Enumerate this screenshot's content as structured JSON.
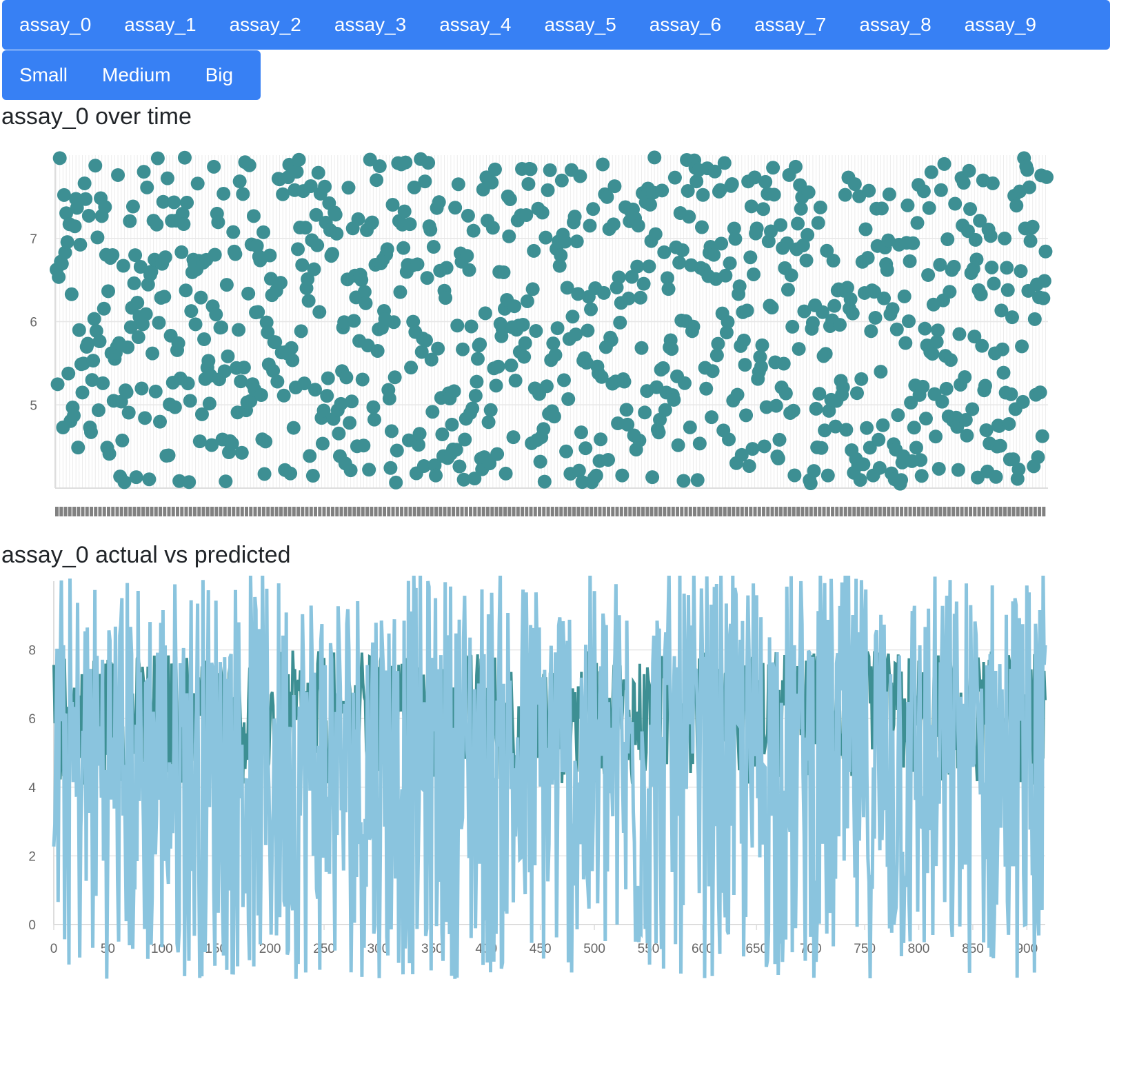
{
  "assay_tabs": [
    "assay_0",
    "assay_1",
    "assay_2",
    "assay_3",
    "assay_4",
    "assay_5",
    "assay_6",
    "assay_7",
    "assay_8",
    "assay_9"
  ],
  "size_tabs": [
    "Small",
    "Medium",
    "Big"
  ],
  "scatter_chart": {
    "title": "assay_0 over time"
  },
  "line_chart": {
    "title": "assay_0 actual vs predicted"
  },
  "colors": {
    "tab_bg": "#3780f4",
    "scatter_point": "#3d8f93",
    "actual_line": "#3d8f93",
    "predicted_line": "#8ac4de",
    "grid": "#e6e6e6"
  },
  "chart_data": [
    {
      "type": "scatter",
      "title": "assay_0 over time",
      "x_count": 920,
      "ylim": [
        4,
        8
      ],
      "yticks": [
        5,
        6,
        7
      ],
      "grid": true,
      "series": [
        {
          "values_range": [
            4.05,
            7.98
          ],
          "point_count": 920
        }
      ]
    },
    {
      "type": "line",
      "title": "assay_0 actual vs predicted",
      "xlim": [
        0,
        917
      ],
      "xticks": [
        0,
        50,
        100,
        150,
        200,
        250,
        300,
        350,
        400,
        450,
        500,
        550,
        600,
        650,
        700,
        750,
        800,
        850,
        900
      ],
      "ylim": [
        0,
        10
      ],
      "yticks": [
        0,
        2,
        4,
        6,
        8
      ],
      "grid": true,
      "series": [
        {
          "values_range": [
            4.05,
            7.98
          ]
        },
        {
          "values_range": [
            -1.6,
            10.4
          ]
        }
      ]
    }
  ]
}
